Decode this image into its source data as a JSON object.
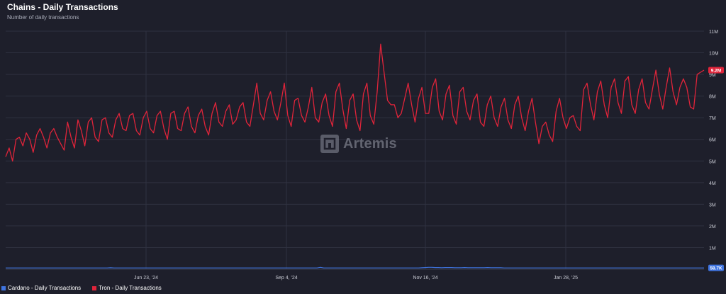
{
  "header": {
    "title": "Chains - Daily Transactions",
    "subtitle": "Number of daily transactions"
  },
  "watermark": {
    "text": "Artemis"
  },
  "colors": {
    "background": "#1e1f2b",
    "tron": "#e0243a",
    "cardano": "#3f74e0",
    "grid": "#2f3140"
  },
  "chart_data": {
    "type": "line",
    "x_ticks": [
      "Jun 23, '24",
      "Sep 4, '24",
      "Nov 16, '24",
      "Jan 28, '25"
    ],
    "y_ticks": [
      "1M",
      "2M",
      "3M",
      "4M",
      "5M",
      "6M",
      "7M",
      "8M",
      "9M",
      "10M",
      "11M"
    ],
    "ylim": [
      0,
      11
    ],
    "y_unit": "M",
    "grid": true,
    "legend_position": "bottom-left",
    "series": [
      {
        "name": "Tron - Daily Transactions",
        "color": "#e0243a",
        "last_value_label": "9.2M",
        "values": [
          5.2,
          5.6,
          5.0,
          6.0,
          6.1,
          5.7,
          6.3,
          6.0,
          5.4,
          6.2,
          6.5,
          6.1,
          5.6,
          6.3,
          6.5,
          6.1,
          5.8,
          5.5,
          6.8,
          6.1,
          5.6,
          6.9,
          6.4,
          5.7,
          6.8,
          7.0,
          6.1,
          5.9,
          6.9,
          7.0,
          6.3,
          6.1,
          6.9,
          7.2,
          6.5,
          6.4,
          7.1,
          7.2,
          6.4,
          6.2,
          7.0,
          7.3,
          6.5,
          6.3,
          7.1,
          7.3,
          6.5,
          6.0,
          7.2,
          7.3,
          6.5,
          6.4,
          7.2,
          7.5,
          6.6,
          6.3,
          7.1,
          7.4,
          6.6,
          6.2,
          7.2,
          7.7,
          6.8,
          6.6,
          7.3,
          7.6,
          6.7,
          6.9,
          7.5,
          7.7,
          6.8,
          6.6,
          7.6,
          8.6,
          7.2,
          6.9,
          7.8,
          8.2,
          7.3,
          6.9,
          7.7,
          8.6,
          7.1,
          6.6,
          7.8,
          7.9,
          7.1,
          6.8,
          7.5,
          8.4,
          7.0,
          6.8,
          7.7,
          8.1,
          7.1,
          6.6,
          8.2,
          8.6,
          7.4,
          6.5,
          7.8,
          8.1,
          6.9,
          6.4,
          8.1,
          8.6,
          7.1,
          6.7,
          8.2,
          10.4,
          9.1,
          7.8,
          7.6,
          7.6,
          7.0,
          7.2,
          7.9,
          8.6,
          7.6,
          6.8,
          7.9,
          8.4,
          7.2,
          7.2,
          8.4,
          8.8,
          7.3,
          6.9,
          8.1,
          8.5,
          7.1,
          6.7,
          8.2,
          8.4,
          7.3,
          6.9,
          7.8,
          8.1,
          6.8,
          6.6,
          7.6,
          8.0,
          7.0,
          6.6,
          7.5,
          7.9,
          6.9,
          6.5,
          7.6,
          8.0,
          7.0,
          6.4,
          7.3,
          7.9,
          6.8,
          5.8,
          6.6,
          6.8,
          6.2,
          5.9,
          7.3,
          7.9,
          7.0,
          6.5,
          7.0,
          7.1,
          6.6,
          6.4,
          8.3,
          8.6,
          7.6,
          6.9,
          8.2,
          8.7,
          7.6,
          7.0,
          8.4,
          8.8,
          7.7,
          7.2,
          8.7,
          8.9,
          7.6,
          7.2,
          8.3,
          8.8,
          7.7,
          7.4,
          8.3,
          9.2,
          8.1,
          7.4,
          8.4,
          9.3,
          8.2,
          7.6,
          8.4,
          8.8,
          8.4,
          7.5,
          7.4,
          9.0,
          9.1,
          9.2
        ]
      },
      {
        "name": "Cardano - Daily Transactions",
        "color": "#3f74e0",
        "last_value_label": "58.7K",
        "values": [
          0.06,
          0.06,
          0.06,
          0.06,
          0.06,
          0.06,
          0.06,
          0.06,
          0.06,
          0.06,
          0.06,
          0.06,
          0.06,
          0.06,
          0.06,
          0.06,
          0.06,
          0.06,
          0.06,
          0.06,
          0.06,
          0.06,
          0.06,
          0.06,
          0.06,
          0.06,
          0.06,
          0.06,
          0.06,
          0.06,
          0.06,
          0.06,
          0.07,
          0.06,
          0.06,
          0.06,
          0.06,
          0.06,
          0.06,
          0.06,
          0.06,
          0.06,
          0.06,
          0.06,
          0.06,
          0.06,
          0.06,
          0.06,
          0.06,
          0.06,
          0.06,
          0.06,
          0.06,
          0.06,
          0.06,
          0.06,
          0.06,
          0.06,
          0.06,
          0.06,
          0.06,
          0.06,
          0.06,
          0.06,
          0.06,
          0.06,
          0.06,
          0.06,
          0.06,
          0.06,
          0.06,
          0.06,
          0.06,
          0.06,
          0.06,
          0.06,
          0.06,
          0.06,
          0.06,
          0.06,
          0.06,
          0.06,
          0.06,
          0.06,
          0.06,
          0.06,
          0.06,
          0.06,
          0.06,
          0.06,
          0.06,
          0.06,
          0.06,
          0.06,
          0.06,
          0.06,
          0.09,
          0.06,
          0.06,
          0.06,
          0.06,
          0.06,
          0.06,
          0.06,
          0.06,
          0.06,
          0.06,
          0.06,
          0.06,
          0.06,
          0.06,
          0.06,
          0.06,
          0.06,
          0.06,
          0.06,
          0.06,
          0.06,
          0.06,
          0.06,
          0.06,
          0.06,
          0.06,
          0.06,
          0.06,
          0.06,
          0.06,
          0.07,
          0.08,
          0.09,
          0.09,
          0.08,
          0.08,
          0.07,
          0.08,
          0.08,
          0.08,
          0.07,
          0.07,
          0.07,
          0.08,
          0.07,
          0.07,
          0.07,
          0.07,
          0.07,
          0.07,
          0.08,
          0.07,
          0.07,
          0.07,
          0.07,
          0.06,
          0.06,
          0.06,
          0.06,
          0.06,
          0.06,
          0.06,
          0.06,
          0.06,
          0.06,
          0.06,
          0.06,
          0.06,
          0.06,
          0.06,
          0.06,
          0.06,
          0.06,
          0.06,
          0.06,
          0.06,
          0.06,
          0.06,
          0.06,
          0.06,
          0.06,
          0.06,
          0.06,
          0.06,
          0.06,
          0.06,
          0.06,
          0.06,
          0.06,
          0.06,
          0.06,
          0.06,
          0.06,
          0.06,
          0.06,
          0.06,
          0.06,
          0.06,
          0.06,
          0.06,
          0.06,
          0.06,
          0.06,
          0.06,
          0.06,
          0.06,
          0.06,
          0.06,
          0.06,
          0.06,
          0.06,
          0.06,
          0.06,
          0.06,
          0.06,
          0.06,
          0.06
        ]
      }
    ]
  },
  "legend": {
    "items": [
      {
        "label": "Cardano - Daily Transactions",
        "color": "#3f74e0"
      },
      {
        "label": "Tron - Daily Transactions",
        "color": "#e0243a"
      }
    ]
  }
}
